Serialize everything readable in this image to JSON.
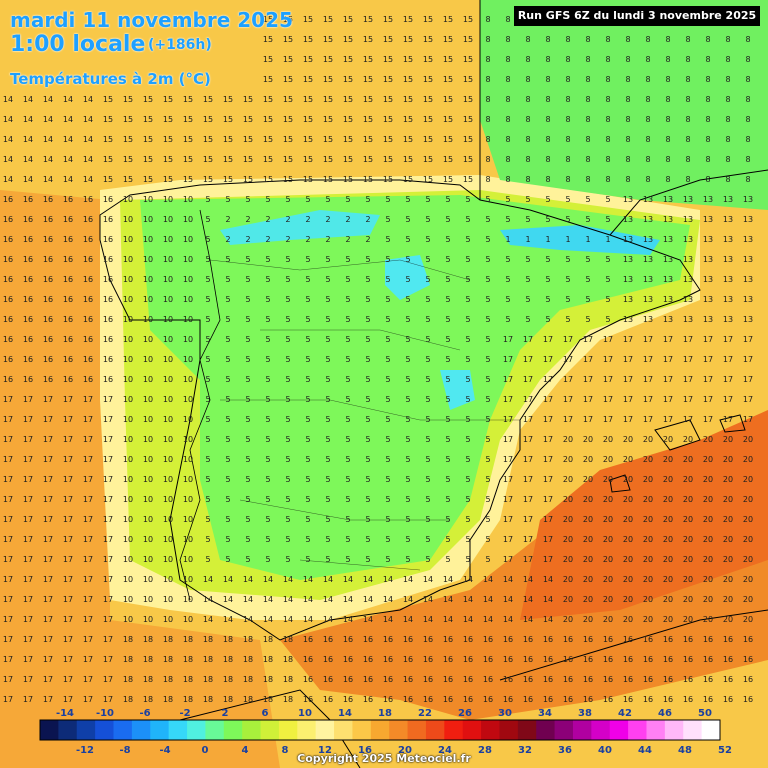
{
  "header": {
    "date": "mardi 11 novembre 2025",
    "time": "1:00 locale",
    "offset": "(+186h)",
    "parameter": "Températures à 2m (°C)"
  },
  "run_label": "Run GFS 6Z du lundi 3 novembre 2025",
  "copyright": "Copyright 2025 Meteociel.fr",
  "legend": {
    "upper_labels": [
      "-14",
      "-10",
      "-6",
      "-2",
      "2",
      "6",
      "10",
      "14",
      "18",
      "22",
      "26",
      "30",
      "34",
      "38",
      "42",
      "46",
      "50"
    ],
    "lower_labels": [
      "-12",
      "-8",
      "-4",
      "0",
      "4",
      "8",
      "12",
      "16",
      "20",
      "24",
      "28",
      "32",
      "36",
      "40",
      "44",
      "48",
      "52"
    ],
    "colors": [
      "#0a1450",
      "#0d2b78",
      "#0f3fa8",
      "#1550d8",
      "#1a6cf0",
      "#1c90f8",
      "#20b4fa",
      "#36d8f8",
      "#50f0e0",
      "#68fa98",
      "#7ef85a",
      "#a8f03c",
      "#d0f038",
      "#f0f040",
      "#fcf070",
      "#fff4a0",
      "#fde070",
      "#fcc848",
      "#f8a830",
      "#f48a28",
      "#f06a20",
      "#ee4a1a",
      "#f01e10",
      "#e01010",
      "#c00810",
      "#a00810",
      "#800818",
      "#700050",
      "#8c0078",
      "#b000a0",
      "#d400c8",
      "#f000e8",
      "#ff40f0",
      "#ff80f4",
      "#ffb8f8",
      "#ffe0fc",
      "#ffffff"
    ],
    "upper_lower_values": [
      -14,
      -12,
      -10,
      -8,
      -6,
      -4,
      -2,
      0,
      2,
      4,
      6,
      8,
      10,
      12,
      14,
      16,
      18,
      20,
      22,
      24,
      26,
      28,
      30,
      32,
      34,
      36,
      38,
      40,
      42,
      44,
      46,
      48,
      50,
      52
    ]
  },
  "zones": [
    {
      "t": 15,
      "color": "#fcd050"
    },
    {
      "t": 5,
      "color": "#7ef85a"
    },
    {
      "t": 18,
      "color": "#f8a830"
    },
    {
      "t": 20,
      "color": "#f08020"
    },
    {
      "t": 1,
      "color": "#50e8f0"
    },
    {
      "t": 12,
      "color": "#fff29a"
    },
    {
      "t": 9,
      "color": "#c8f03c"
    }
  ]
}
